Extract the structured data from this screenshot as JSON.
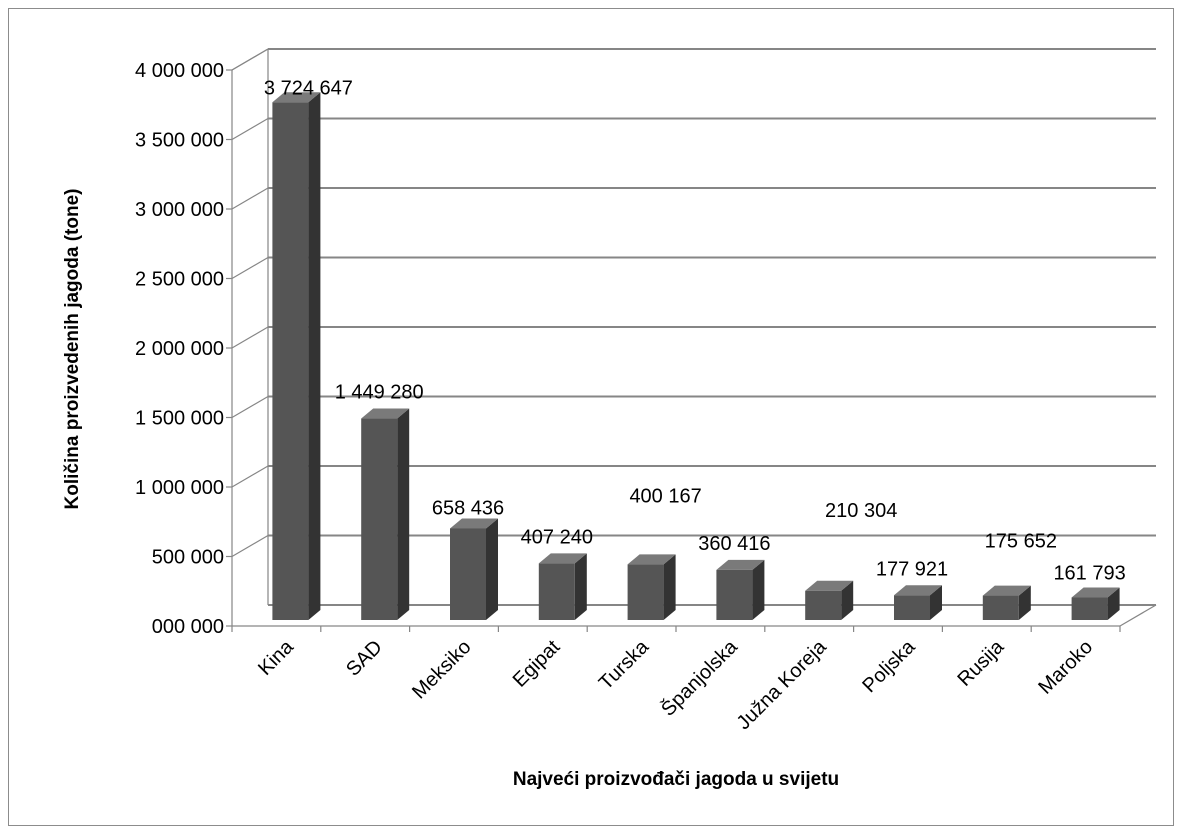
{
  "chart_data": {
    "type": "bar",
    "title": "",
    "xlabel": "Najveći proizvođači jagoda u svijetu",
    "ylabel": "Količina proizvedenih jagoda (tone)",
    "categories": [
      "Kina",
      "SAD",
      "Meksiko",
      "Egipat",
      "Turska",
      "Španjolska",
      "Južna Koreja",
      "Poljska",
      "Rusija",
      "Maroko"
    ],
    "values": [
      3724647,
      1449280,
      658436,
      407240,
      400167,
      360416,
      210304,
      177921,
      175652,
      161793
    ],
    "data_labels": [
      "3 724 647",
      "1 449 280",
      "658 436",
      "407 240",
      "400 167",
      "360 416",
      "210 304",
      "177 921",
      "175 652",
      "161 793"
    ],
    "yticks": [
      {
        "value": 0,
        "label": "000 000"
      },
      {
        "value": 500000,
        "label": "500 000"
      },
      {
        "value": 1000000,
        "label": "1 000 000"
      },
      {
        "value": 1500000,
        "label": "1 500 000"
      },
      {
        "value": 2000000,
        "label": "2 000 000"
      },
      {
        "value": 2500000,
        "label": "2 500 000"
      },
      {
        "value": 3000000,
        "label": "3 000 000"
      },
      {
        "value": 3500000,
        "label": "3 500 000"
      },
      {
        "value": 4000000,
        "label": "4 000 000"
      }
    ],
    "ylim": [
      0,
      4000000
    ],
    "grid": true,
    "legend": "none",
    "style": "3d-column",
    "colors": {
      "bar_front": "#555555",
      "bar_side": "#333333",
      "bar_top": "#7a7a7a",
      "grid": "#868686",
      "wall": "#bdbdbd"
    }
  }
}
